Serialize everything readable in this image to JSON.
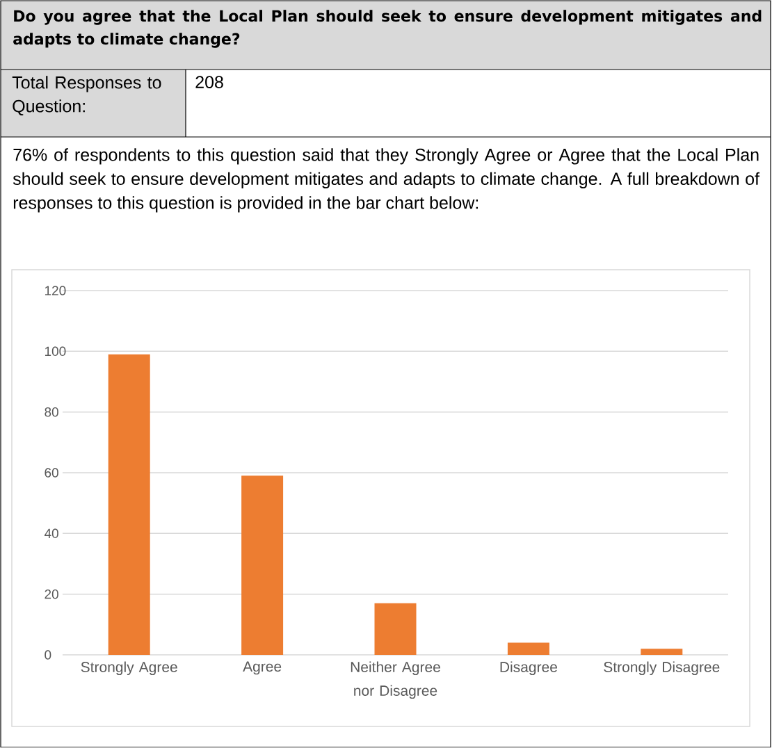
{
  "chart_data": {
    "type": "bar",
    "title": "Do you agree that the Local Plan should seek to ensure development mitigates and adapts to climate change?",
    "annotations": [
      "Total Responses to Question:",
      "208",
      "76% of respondents to this question said that they Strongly Agree or Agree that the Local Plan should seek to ensure development mitigates and adapts to climate change. A full breakdown of responses to this question is provided in the bar chart below:"
    ],
    "categories": [
      "Strongly Agree",
      "Agree",
      "Neither Agree nor Disagree",
      "Disagree",
      "Strongly Disagree"
    ],
    "values": [
      99,
      59,
      17,
      4,
      2
    ],
    "color": "#ed7d31",
    "ylim": [
      0,
      120
    ],
    "yticks": [
      0,
      20,
      40,
      60,
      80,
      100,
      120
    ],
    "grid": "y"
  }
}
